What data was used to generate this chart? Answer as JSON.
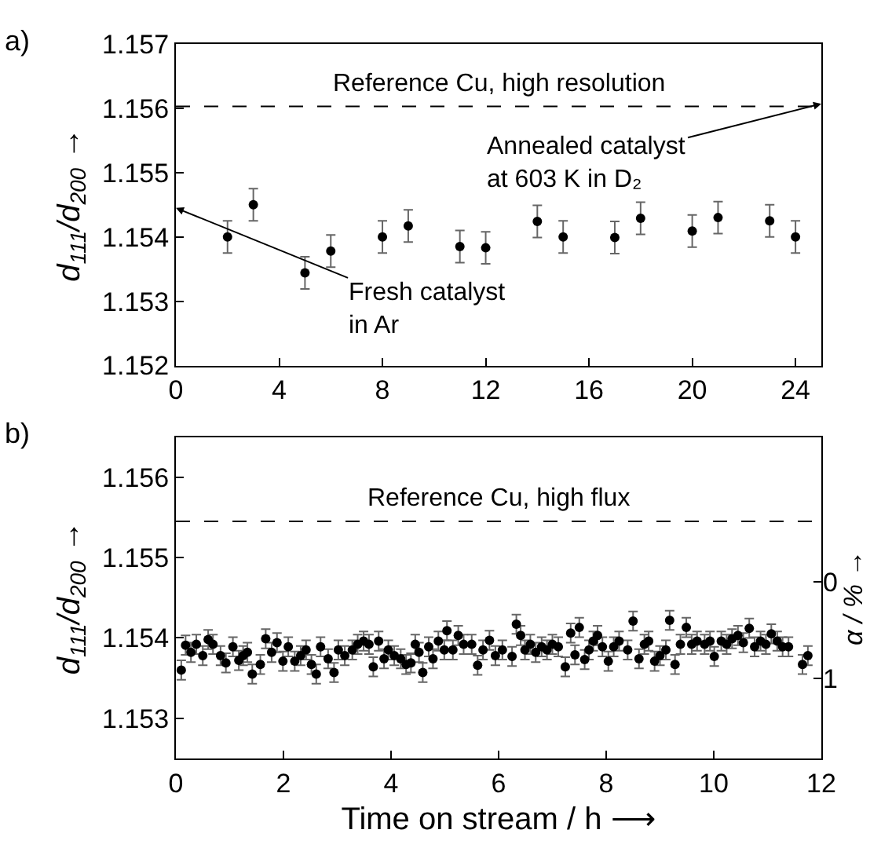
{
  "chart_data": [
    {
      "type": "scatter",
      "title": "a)",
      "ylabel": "d$_{111}$/d$_{200}$ →",
      "marker": "circle",
      "grid": false,
      "xlim": [
        0,
        25
      ],
      "xticks": [
        0,
        4,
        8,
        12,
        16,
        20,
        24
      ],
      "ylim": [
        1.152,
        1.157
      ],
      "yticks": [
        1.152,
        1.153,
        1.154,
        1.155,
        1.156,
        1.157
      ],
      "series": [
        {
          "color": "#000000",
          "x": [
            2,
            3,
            5,
            6,
            8,
            9,
            11,
            12,
            14,
            15,
            17,
            18,
            20,
            21,
            23,
            24
          ],
          "values": [
            1.154,
            1.1545,
            1.15344,
            1.15378,
            1.154,
            1.15417,
            1.15385,
            1.15383,
            1.15424,
            1.154,
            1.15399,
            1.15429,
            1.15409,
            1.1543,
            1.15425,
            1.154
          ],
          "errors": [
            0.00025,
            0.00025,
            0.00025,
            0.00025,
            0.00025,
            0.00025,
            0.00025,
            0.00025,
            0.00025,
            0.00025,
            0.00025,
            0.00025,
            0.00025,
            0.00025,
            0.00025,
            0.00025
          ]
        }
      ],
      "ref_lines": [
        {
          "axis": "y",
          "value": 1.15603,
          "label": "Reference Cu, high resolution",
          "line_style": "dashed",
          "color": "#000000"
        }
      ],
      "annotations": [
        "Fresh catalyst\nin Ar",
        {
          "text": "Annealed catalyst\nat 603 K in D₂",
          "x": 25,
          "y": 1.15607
        }
      ]
    },
    {
      "type": "scatter",
      "title": "b)",
      "xlabel": "Time on stream / h ⟶",
      "ylabel": "d$_{111}$/d$_{200}$ →",
      "y2label": "α / % →",
      "marker": "circle",
      "grid": false,
      "xlim": [
        0,
        12
      ],
      "xticks": [
        0,
        2,
        4,
        6,
        8,
        10,
        12
      ],
      "ylim": [
        1.1525,
        1.1565
      ],
      "yticks": [
        1.153,
        1.154,
        1.155,
        1.156
      ],
      "y2lim": [
        1.83,
        -1.5
      ],
      "y2ticks": [
        0,
        1
      ],
      "series": [
        {
          "color": "#000000",
          "x": [
            0.1,
            0.18,
            0.28,
            0.38,
            0.5,
            0.6,
            0.69,
            0.83,
            0.93,
            1.06,
            1.17,
            1.25,
            1.33,
            1.42,
            1.57,
            1.67,
            1.78,
            1.88,
            1.99,
            2.09,
            2.21,
            2.32,
            2.42,
            2.52,
            2.61,
            2.69,
            2.83,
            2.94,
            3.02,
            3.14,
            3.28,
            3.38,
            3.49,
            3.59,
            3.67,
            3.77,
            3.87,
            3.95,
            4.06,
            4.18,
            4.28,
            4.37,
            4.45,
            4.52,
            4.59,
            4.7,
            4.78,
            4.88,
            4.99,
            5.04,
            5.15,
            5.25,
            5.35,
            5.5,
            5.61,
            5.71,
            5.83,
            5.94,
            6.07,
            6.25,
            6.33,
            6.41,
            6.49,
            6.59,
            6.69,
            6.8,
            6.9,
            7.0,
            7.11,
            7.24,
            7.34,
            7.42,
            7.5,
            7.6,
            7.68,
            7.76,
            7.84,
            7.93,
            8.04,
            8.14,
            8.24,
            8.4,
            8.5,
            8.61,
            8.71,
            8.79,
            8.9,
            9.0,
            9.11,
            9.18,
            9.28,
            9.38,
            9.49,
            9.59,
            9.69,
            9.83,
            9.93,
            10.01,
            10.14,
            10.24,
            10.34,
            10.45,
            10.55,
            10.66,
            10.76,
            10.87,
            10.97,
            11.07,
            11.18,
            11.28,
            11.39,
            11.65,
            11.75
          ],
          "values": [
            1.1536,
            1.15391,
            1.15382,
            1.15392,
            1.15378,
            1.15398,
            1.15392,
            1.15378,
            1.15369,
            1.15389,
            1.15372,
            1.15378,
            1.15382,
            1.15355,
            1.15367,
            1.15399,
            1.15382,
            1.15394,
            1.15371,
            1.15389,
            1.15371,
            1.15378,
            1.15385,
            1.15367,
            1.15355,
            1.15389,
            1.15374,
            1.15357,
            1.15385,
            1.15378,
            1.15385,
            1.15392,
            1.15396,
            1.15392,
            1.15364,
            1.15396,
            1.15374,
            1.15385,
            1.15378,
            1.15374,
            1.15367,
            1.15369,
            1.15392,
            1.15382,
            1.15357,
            1.15389,
            1.15374,
            1.15396,
            1.15385,
            1.15409,
            1.15385,
            1.15403,
            1.15392,
            1.15392,
            1.15366,
            1.15385,
            1.15397,
            1.15378,
            1.15385,
            1.15377,
            1.15417,
            1.15403,
            1.15385,
            1.15392,
            1.15382,
            1.15389,
            1.15385,
            1.15392,
            1.15389,
            1.15364,
            1.15406,
            1.15379,
            1.15413,
            1.15373,
            1.15385,
            1.15396,
            1.15403,
            1.15389,
            1.15371,
            1.15389,
            1.15396,
            1.15385,
            1.15421,
            1.15374,
            1.15392,
            1.15396,
            1.15371,
            1.15378,
            1.15385,
            1.15422,
            1.15367,
            1.15392,
            1.15413,
            1.15392,
            1.15396,
            1.15392,
            1.15396,
            1.15377,
            1.15396,
            1.15392,
            1.15399,
            1.15403,
            1.15394,
            1.15412,
            1.15389,
            1.15396,
            1.15392,
            1.15405,
            1.15396,
            1.15389,
            1.15389,
            1.15367,
            1.15378
          ],
          "errors": [
            0.00012,
            0.00012,
            0.00012,
            0.00012,
            0.00012,
            0.00012,
            0.00012,
            0.00012,
            0.00012,
            0.00012,
            0.00012,
            0.00012,
            0.00012,
            0.00012,
            0.00012,
            0.00012,
            0.00012,
            0.00012,
            0.00012,
            0.00012,
            0.00012,
            0.00012,
            0.00012,
            0.00012,
            0.00012,
            0.00012,
            0.00012,
            0.00012,
            0.00012,
            0.00012,
            0.00012,
            0.00012,
            0.00012,
            0.00012,
            0.00012,
            0.00012,
            0.00012,
            0.00012,
            0.00012,
            0.00012,
            0.00012,
            0.00012,
            0.00012,
            0.00012,
            0.00012,
            0.00012,
            0.00012,
            0.00012,
            0.00012,
            0.00012,
            0.00012,
            0.00012,
            0.00012,
            0.00012,
            0.00012,
            0.00012,
            0.00012,
            0.00012,
            0.00012,
            0.00012,
            0.00012,
            0.00012,
            0.00012,
            0.00012,
            0.00012,
            0.00012,
            0.00012,
            0.00012,
            0.00012,
            0.00012,
            0.00012,
            0.00012,
            0.00012,
            0.00012,
            0.00012,
            0.00012,
            0.00012,
            0.00012,
            0.00012,
            0.00012,
            0.00012,
            0.00012,
            0.00012,
            0.00012,
            0.00012,
            0.00012,
            0.00012,
            0.00012,
            0.00012,
            0.00012,
            0.00012,
            0.00012,
            0.00012,
            0.00012,
            0.00012,
            0.00012,
            0.00012,
            0.00012,
            0.00012,
            0.00012,
            0.00012,
            0.00012,
            0.00012,
            0.00012,
            0.00012,
            0.00012,
            0.00012,
            0.00012,
            0.00012,
            0.00012,
            0.00012,
            0.00012,
            0.00012
          ]
        }
      ],
      "ref_lines": [
        {
          "axis": "y",
          "value": 1.15545,
          "label": "Reference Cu, high flux",
          "line_style": "dashed",
          "color": "#000000"
        }
      ]
    }
  ]
}
